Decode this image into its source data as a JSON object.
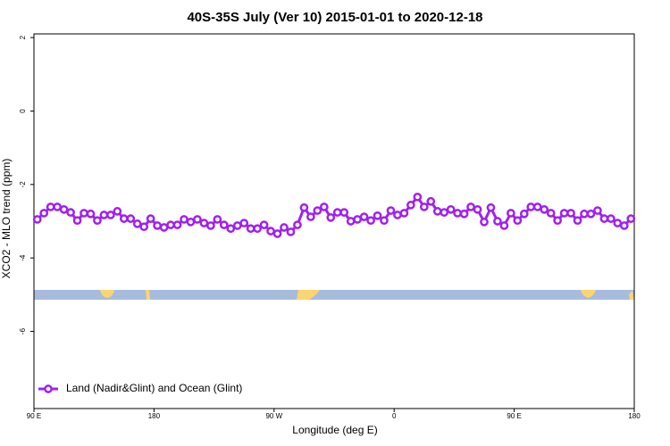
{
  "chart_data": {
    "type": "line",
    "title": "40S-35S July (Ver 10)   2015-01-01 to 2020-12-18",
    "x_label": "Longitude (deg E)",
    "y_label": "XCO2 - MLO trend (ppm)",
    "xlim": [
      90,
      540
    ],
    "ylim": [
      -8.1,
      2.1
    ],
    "xticks": [
      {
        "value": 90,
        "label": "90 E"
      },
      180,
      {
        "value": 270,
        "label": "90 W"
      },
      {
        "value": 360,
        "label": "0"
      },
      {
        "value": 450,
        "label": "90 E"
      },
      {
        "value": 540,
        "label": "180"
      }
    ],
    "yticks": [
      2,
      0,
      -2,
      -4,
      -6
    ],
    "legend": "lower left",
    "x": [
      92.5,
      97.5,
      102.5,
      107.5,
      112.5,
      117.5,
      122.5,
      127.5,
      132.5,
      137.5,
      142.5,
      147.5,
      152.5,
      157.5,
      162.5,
      167.5,
      172.5,
      177.5,
      182.5,
      187.5,
      192.5,
      197.5,
      202.5,
      207.5,
      212.5,
      217.5,
      222.5,
      227.5,
      232.5,
      237.5,
      242.5,
      247.5,
      252.5,
      257.5,
      262.5,
      267.5,
      272.5,
      277.5,
      282.5,
      287.5,
      292.5,
      297.5,
      302.5,
      307.5,
      312.5,
      317.5,
      322.5,
      327.5,
      332.5,
      337.5,
      342.5,
      347.5,
      352.5,
      357.5,
      362.5,
      367.5,
      372.5,
      377.5,
      382.5,
      387.5,
      392.5,
      397.5,
      402.5,
      407.5,
      412.5,
      417.5,
      422.5,
      427.5,
      432.5,
      437.5,
      442.5,
      447.5,
      452.5,
      457.5,
      462.5,
      467.5,
      472.5,
      477.5,
      482.5,
      487.5,
      492.5,
      497.5,
      502.5,
      507.5,
      512.5,
      517.5,
      522.5,
      527.5,
      532.5,
      537.5
    ],
    "series": [
      {
        "name": "Land (Nadir&Glint) and Ocean (Glint)",
        "color": "#a020f0",
        "values": [
          -2.95,
          -2.78,
          -2.61,
          -2.61,
          -2.68,
          -2.76,
          -2.98,
          -2.78,
          -2.8,
          -2.98,
          -2.83,
          -2.83,
          -2.73,
          -2.93,
          -2.93,
          -3.07,
          -3.15,
          -2.93,
          -3.12,
          -3.17,
          -3.1,
          -3.1,
          -2.95,
          -3.02,
          -2.95,
          -3.05,
          -3.12,
          -2.95,
          -3.1,
          -3.2,
          -3.12,
          -3.05,
          -3.2,
          -3.2,
          -3.1,
          -3.27,
          -3.34,
          -3.17,
          -3.29,
          -3.1,
          -2.63,
          -2.88,
          -2.71,
          -2.61,
          -2.9,
          -2.76,
          -2.76,
          -3.0,
          -2.95,
          -2.88,
          -2.98,
          -2.85,
          -2.98,
          -2.71,
          -2.83,
          -2.78,
          -2.56,
          -2.34,
          -2.61,
          -2.46,
          -2.73,
          -2.76,
          -2.68,
          -2.78,
          -2.8,
          -2.61,
          -2.68,
          -3.02,
          -2.63,
          -3.0,
          -3.12,
          -2.78,
          -2.98,
          -2.8,
          -2.61,
          -2.61,
          -2.68,
          -2.78,
          -2.98,
          -2.78,
          -2.78,
          -2.98,
          -2.8,
          -2.8,
          -2.71,
          -2.93,
          -2.93,
          -3.05,
          -3.12,
          -2.93
        ]
      }
    ]
  }
}
